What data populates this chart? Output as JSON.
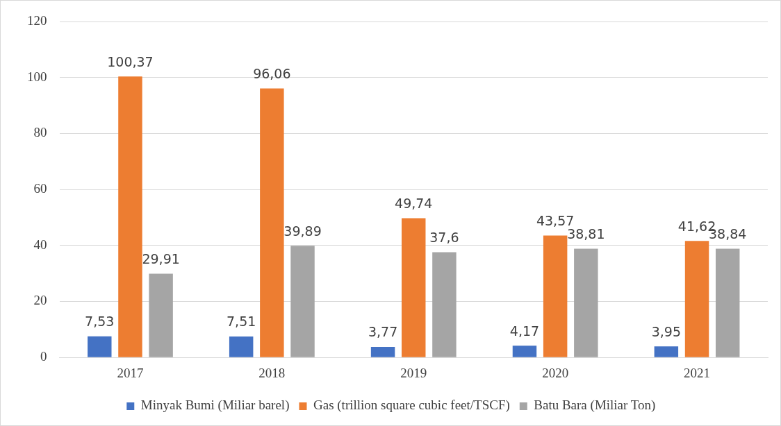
{
  "chart_data": {
    "type": "bar",
    "categories": [
      "2017",
      "2018",
      "2019",
      "2020",
      "2021"
    ],
    "series": [
      {
        "name": "Minyak Bumi (Miliar barel)",
        "color": "#4472c4",
        "values": [
          7.53,
          7.51,
          3.77,
          4.17,
          3.95
        ],
        "value_labels": [
          "7,53",
          "7,51",
          "3,77",
          "4,17",
          "3,95"
        ]
      },
      {
        "name": "Gas (trillion square cubic feet/TSCF)",
        "color": "#ed7d31",
        "values": [
          100.37,
          96.06,
          49.74,
          43.57,
          41.62
        ],
        "value_labels": [
          "100,37",
          "96,06",
          "49,74",
          "43,57",
          "41,62"
        ]
      },
      {
        "name": "Batu Bara (Miliar Ton)",
        "color": "#a5a5a5",
        "values": [
          29.91,
          39.89,
          37.6,
          38.81,
          38.84
        ],
        "value_labels": [
          "29,91",
          "39,89",
          "37,6",
          "38,81",
          "38,84"
        ]
      }
    ],
    "ylim": [
      0,
      120
    ],
    "yticks": [
      0,
      20,
      40,
      60,
      80,
      100,
      120
    ],
    "grid": "y",
    "legend": "bottom"
  }
}
